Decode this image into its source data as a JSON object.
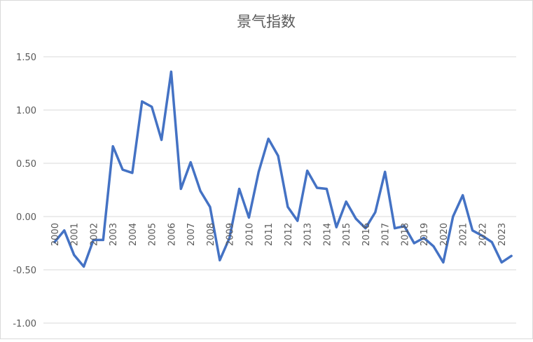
{
  "chart_data": {
    "type": "line",
    "title": "景气指数",
    "categories": [
      "2000",
      null,
      "2001",
      null,
      "2002",
      null,
      "2003",
      null,
      "2004",
      null,
      "2005",
      null,
      "2006",
      null,
      "2007",
      null,
      "2008",
      null,
      "2009",
      null,
      "2010",
      null,
      "2011",
      null,
      "2012",
      null,
      "2013",
      null,
      "2014",
      null,
      "2015",
      null,
      "2016",
      null,
      "2017",
      null,
      "2018",
      null,
      "2019",
      null,
      "2020",
      null,
      "2021",
      null,
      "2022",
      null,
      "2023",
      null
    ],
    "values": [
      -0.24,
      -0.13,
      -0.36,
      -0.47,
      -0.22,
      -0.22,
      0.66,
      0.44,
      0.41,
      1.08,
      1.03,
      0.72,
      1.36,
      0.26,
      0.51,
      0.24,
      0.09,
      -0.41,
      -0.2,
      0.26,
      -0.01,
      0.42,
      0.73,
      0.57,
      0.09,
      -0.04,
      0.43,
      0.27,
      0.26,
      -0.1,
      0.14,
      -0.02,
      -0.11,
      0.04,
      0.42,
      -0.11,
      -0.09,
      -0.25,
      -0.2,
      -0.28,
      -0.43,
      0.0,
      0.2,
      -0.13,
      -0.18,
      -0.24,
      -0.43,
      -0.37
    ],
    "color": "#4472c4",
    "ylim": [
      -1.0,
      1.5
    ],
    "yticks": [
      {
        "value": -1.0,
        "label": "-1.00"
      },
      {
        "value": -0.5,
        "label": "-0.50"
      },
      {
        "value": 0,
        "label": "0.00"
      },
      {
        "value": 0.5,
        "label": "0.50"
      },
      {
        "value": 1.0,
        "label": "1.00"
      },
      {
        "value": 1.5,
        "label": "1.50"
      }
    ],
    "grid": true
  }
}
